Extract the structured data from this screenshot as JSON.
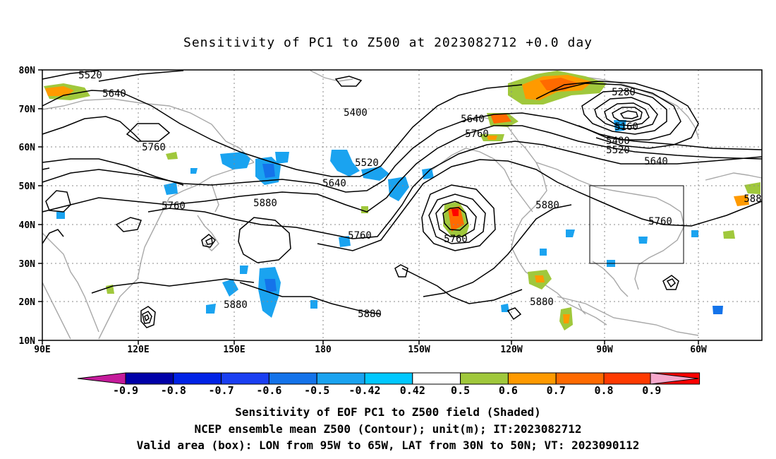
{
  "title": "Sensitivity of PC1 to Z500 at 2023082712 +0.0 day",
  "axes": {
    "lat_ticks": [
      "80N",
      "70N",
      "60N",
      "50N",
      "40N",
      "30N",
      "20N",
      "10N"
    ],
    "lon_ticks": [
      "90E",
      "120E",
      "150E",
      "180",
      "150W",
      "120W",
      "90W",
      "60W"
    ]
  },
  "contour_labels": [
    {
      "text": "5520"
    },
    {
      "text": "5640"
    },
    {
      "text": "5760"
    },
    {
      "text": "5400"
    },
    {
      "text": "5640"
    },
    {
      "text": "5760"
    },
    {
      "text": "5280"
    },
    {
      "text": "5160"
    },
    {
      "text": "5400"
    },
    {
      "text": "5520"
    },
    {
      "text": "5640"
    },
    {
      "text": "5520"
    },
    {
      "text": "5640"
    },
    {
      "text": "5760"
    },
    {
      "text": "5880"
    },
    {
      "text": "5760"
    },
    {
      "text": "5760"
    },
    {
      "text": "5880"
    },
    {
      "text": "5760"
    },
    {
      "text": "5880"
    },
    {
      "text": "5880"
    },
    {
      "text": "5880"
    },
    {
      "text": "588"
    }
  ],
  "colorbar": {
    "labels": [
      "-0.9",
      "-0.8",
      "-0.7",
      "-0.6",
      "-0.5",
      "-0.42",
      "0.42",
      "0.5",
      "0.6",
      "0.7",
      "0.8",
      "0.9"
    ],
    "colors": {
      "low_end": "#c51b9b",
      "bins": [
        "#0000a8",
        "#0022e6",
        "#1a3ff2",
        "#1473ea",
        "#1aa3f0",
        "#00c8ff",
        "#ffffff",
        "#a0c83c",
        "#ff9a00",
        "#ff6a00",
        "#ff3a00",
        "#ff0000"
      ],
      "high_end": "#f5a8cc"
    }
  },
  "captions": [
    "Sensitivity of EOF PC1 to Z500 field (Shaded)",
    "NCEP ensemble mean Z500 (Contour); unit(m); IT:2023082712",
    "Valid area (box): LON from 95W to 65W, LAT from 30N to 50N; VT: 2023090112"
  ]
}
